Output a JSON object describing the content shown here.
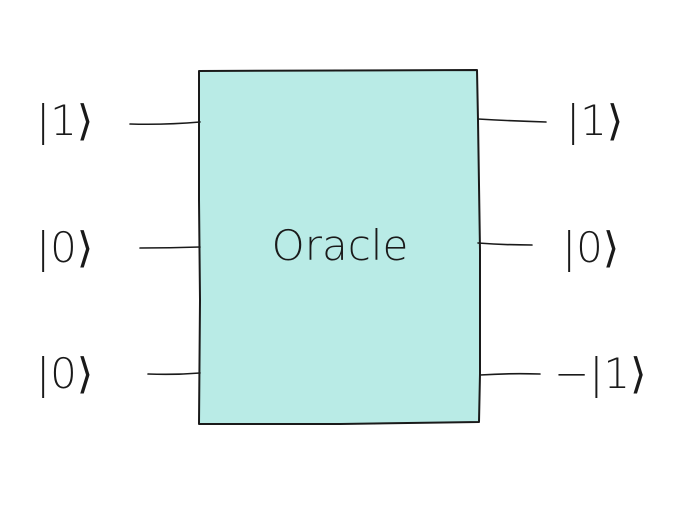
{
  "oracle": {
    "label": "Oracle",
    "fill_color": "#b9ebe6",
    "stroke_color": "#1a1a1a"
  },
  "inputs": [
    {
      "state": "|1⟩"
    },
    {
      "state": "|0⟩"
    },
    {
      "state": "|0⟩"
    }
  ],
  "outputs": [
    {
      "state": "|1⟩"
    },
    {
      "state": "|0⟩"
    },
    {
      "state": "−|1⟩"
    }
  ]
}
